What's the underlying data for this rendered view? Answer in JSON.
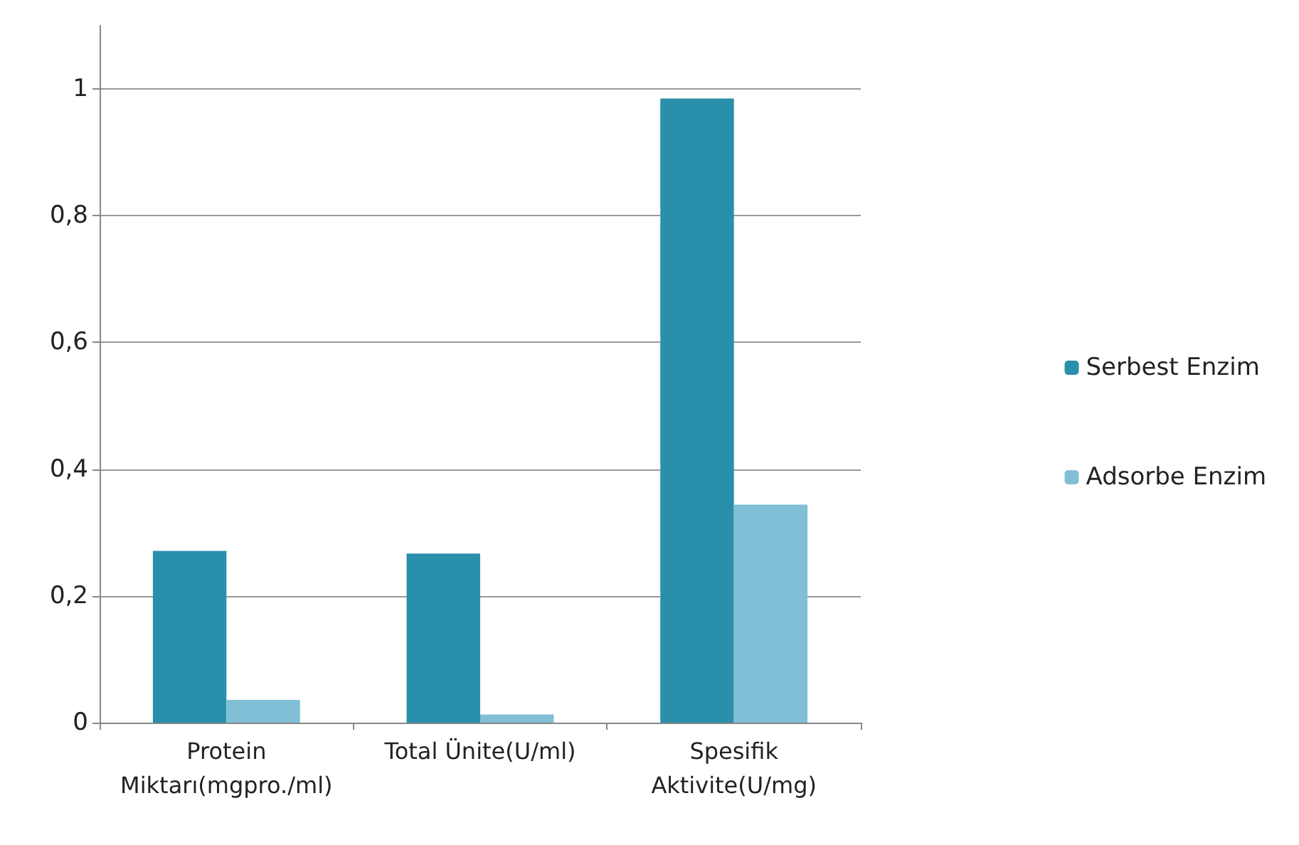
{
  "chart_data": {
    "type": "bar",
    "categories": [
      "Protein\nMiktarı(mgpro./ml)",
      "Total Ünite(U/ml)",
      "Spesifik\nAktivite(U/mg)"
    ],
    "series": [
      {
        "name": "Serbest Enzim",
        "color": "#2a8fab",
        "values": [
          0.271,
          0.267,
          0.985
        ]
      },
      {
        "name": "Adsorbe Enzim",
        "color": "#80bfd6",
        "values": [
          0.036,
          0.013,
          0.344
        ]
      }
    ],
    "ylim": [
      0,
      1.1
    ],
    "yticks": [
      0,
      {
        "value": 0.2,
        "label": "0,2"
      },
      {
        "value": 0.4,
        "label": "0,4"
      },
      {
        "value": 0.6,
        "label": "0,6"
      },
      {
        "value": 0.8,
        "label": "0,8"
      },
      1
    ],
    "grid": "y",
    "legend": "right"
  }
}
